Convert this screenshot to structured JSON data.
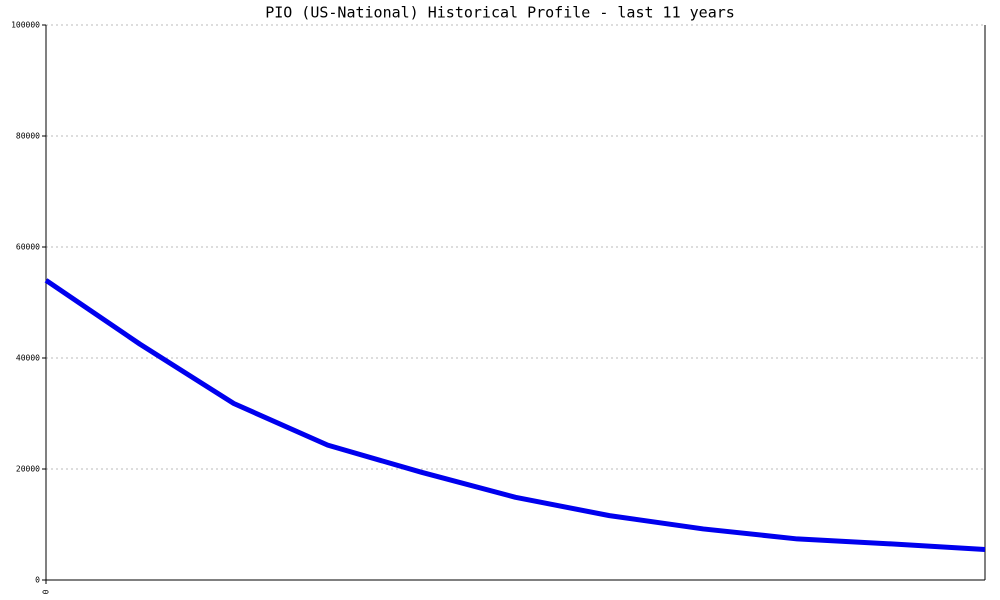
{
  "chart_data": {
    "type": "line",
    "title": "PIO (US-National) Historical Profile - last 11 years",
    "x": [
      0,
      1,
      2,
      3,
      4,
      5,
      6,
      7,
      8,
      9,
      10
    ],
    "values": [
      54000,
      42500,
      31800,
      24300,
      19400,
      14900,
      11600,
      9200,
      7400,
      6500,
      5500
    ],
    "color": "#0000ee",
    "xlim": [
      0,
      10
    ],
    "xticks": [
      0
    ],
    "ylim": [
      0,
      100000
    ],
    "yticks": [
      0,
      20000,
      40000,
      60000,
      80000,
      100000
    ],
    "grid": true
  }
}
